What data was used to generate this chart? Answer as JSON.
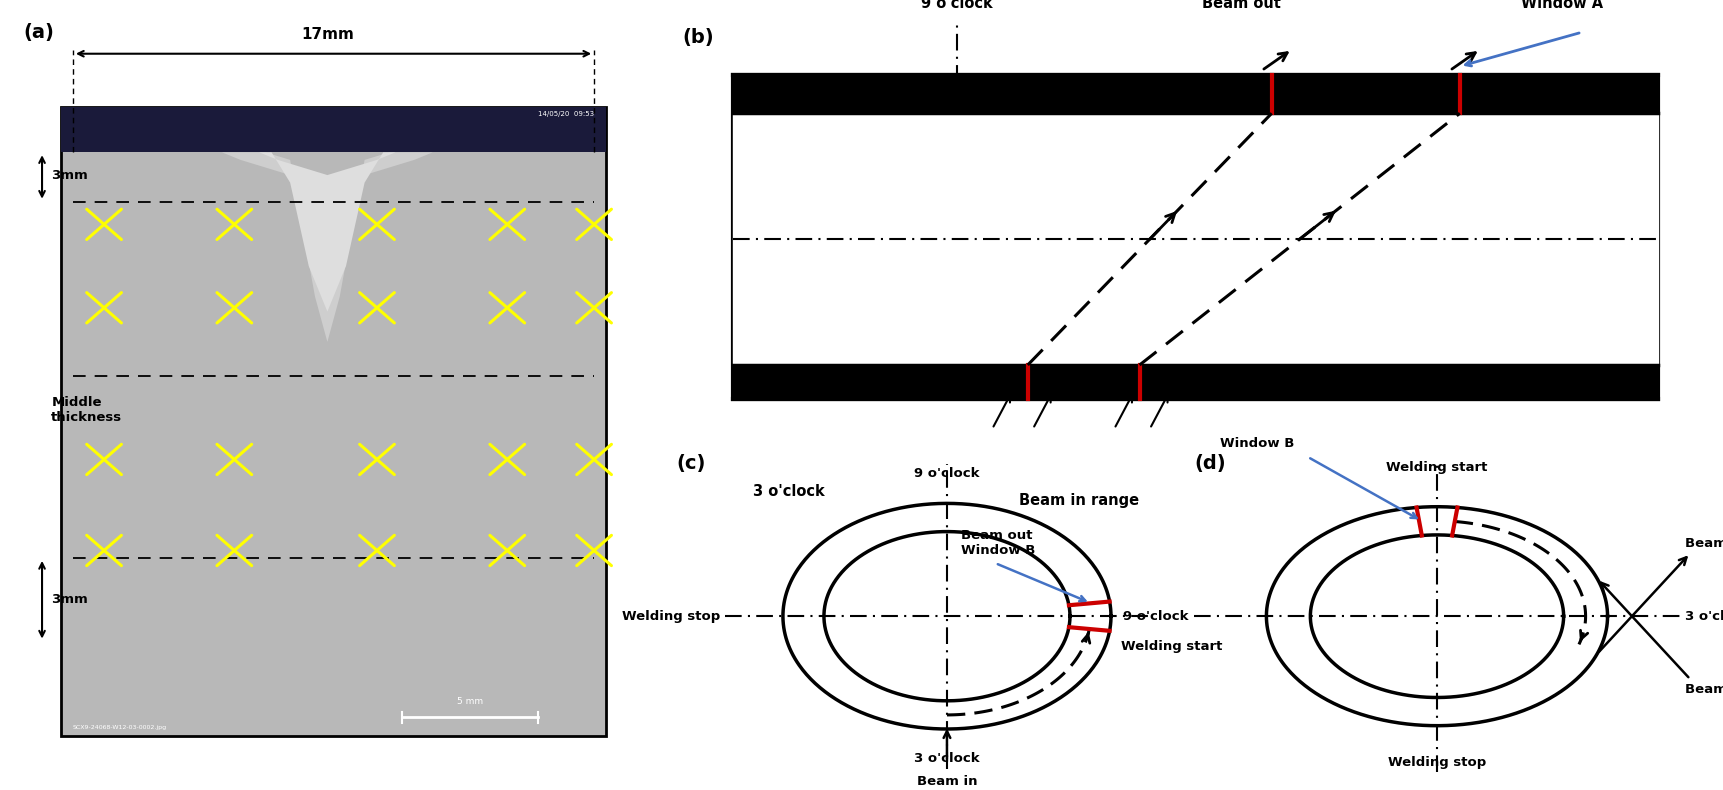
{
  "panel_a_label": "(a)",
  "panel_b_label": "(b)",
  "panel_c_label": "(c)",
  "panel_d_label": "(d)",
  "fig_bg": "#ffffff",
  "photo_bg": "#b8b8b8",
  "photo_dark": "#1a1a3a",
  "weld_light": "#d8d8d8",
  "weld_dark": "#909090",
  "red_color": "#cc0000",
  "blue_color": "#4472c4",
  "yellow_color": "#ffff00"
}
